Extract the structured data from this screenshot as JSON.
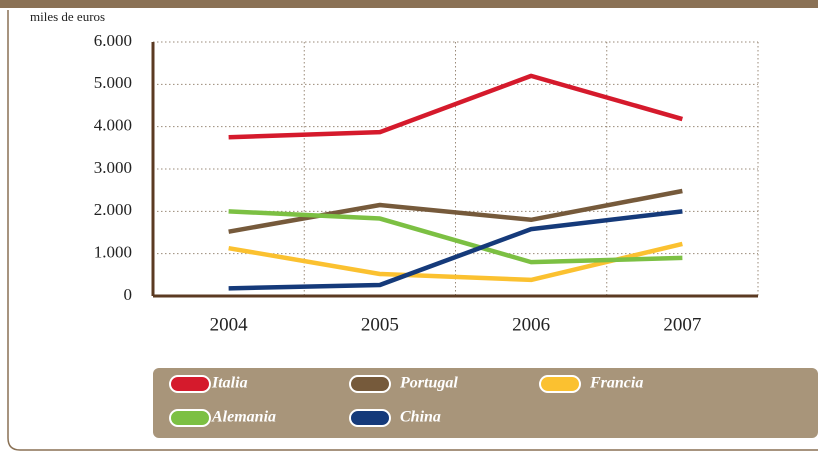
{
  "chart_data": {
    "type": "line",
    "y_label": "miles de euros",
    "categories": [
      "2004",
      "2005",
      "2006",
      "2007"
    ],
    "series": [
      {
        "name": "Italia",
        "color": "#d51a2c",
        "values": [
          3750,
          3870,
          5200,
          4180
        ]
      },
      {
        "name": "Portugal",
        "color": "#765a3b",
        "values": [
          1520,
          2150,
          1800,
          2480
        ]
      },
      {
        "name": "Francia",
        "color": "#fbc130",
        "values": [
          1130,
          520,
          380,
          1230
        ]
      },
      {
        "name": "Alemania",
        "color": "#7cc043",
        "values": [
          2000,
          1830,
          800,
          900
        ]
      },
      {
        "name": "China",
        "color": "#153a7a",
        "values": [
          180,
          260,
          1580,
          2000
        ]
      }
    ],
    "ylim": [
      0,
      6000
    ],
    "yticks": [
      0,
      {
        "value": 1000,
        "label": "1.000"
      },
      {
        "value": 2000,
        "label": "2.000"
      },
      {
        "value": 3000,
        "label": "3.000"
      },
      {
        "value": 4000,
        "label": "4.000"
      },
      {
        "value": 5000,
        "label": "5.000"
      },
      {
        "value": 6000,
        "label": "6.000"
      }
    ],
    "grid": true,
    "legend": "bottom"
  }
}
